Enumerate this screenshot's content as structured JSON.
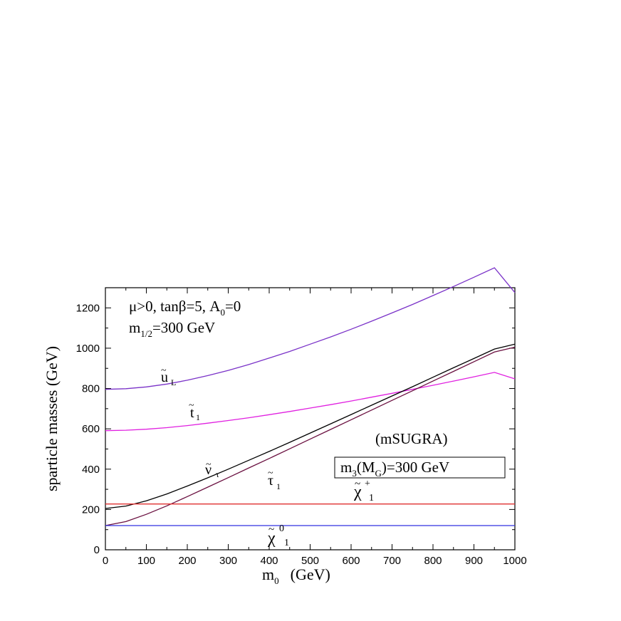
{
  "chart_data": {
    "type": "line",
    "xlabel_main": "m",
    "xlabel_sub": "0",
    "xlabel_unit": "(GeV)",
    "ylabel": "sparticle masses (GeV)",
    "xlim": [
      0,
      1000
    ],
    "ylim": [
      0,
      1300
    ],
    "xticks": [
      0,
      100,
      200,
      300,
      400,
      500,
      600,
      700,
      800,
      900,
      1000
    ],
    "yticks": [
      0,
      200,
      400,
      600,
      800,
      1000,
      1200
    ],
    "grid": false,
    "annotations": {
      "params_line1": {
        "a": "μ>0, tanβ=5, A",
        "sub": "0",
        "b": "=0"
      },
      "params_line2": {
        "a": "m",
        "sub": "1/2",
        "b": "=300 GeV"
      },
      "model": "(mSUGRA)",
      "boxed": {
        "a": "m",
        "sub1": "3",
        "b": "(M",
        "sub2": "G",
        "c": ")=300 GeV"
      }
    },
    "series": [
      {
        "label": {
          "glyph": "u",
          "tilde": "~",
          "sub": "L"
        },
        "color": "#7a32c8",
        "x": [
          0,
          50,
          100,
          150,
          200,
          250,
          300,
          350,
          400,
          450,
          500,
          550,
          600,
          650,
          700,
          750,
          800,
          850,
          900,
          950,
          1000
        ],
        "y": [
          796,
          799,
          808,
          822,
          841,
          864,
          890,
          919,
          951,
          984,
          1020,
          1056,
          1094,
          1134,
          1175,
          1217,
          1261,
          1306,
          1352,
          1399,
          1276
        ]
      },
      {
        "label": {
          "glyph": "t",
          "tilde": "~",
          "sub": "1"
        },
        "color": "#e020e0",
        "x": [
          0,
          50,
          100,
          150,
          200,
          250,
          300,
          350,
          400,
          450,
          500,
          550,
          600,
          650,
          700,
          750,
          800,
          850,
          900,
          950,
          1000
        ],
        "y": [
          591,
          593,
          598,
          606,
          616,
          628,
          641,
          655,
          670,
          686,
          703,
          720,
          738,
          757,
          776,
          796,
          816,
          837,
          858,
          880,
          848
        ]
      },
      {
        "label": {
          "glyph": "ν",
          "tilde": "~",
          "sub": "τ"
        },
        "color": "#000000",
        "x": [
          0,
          50,
          100,
          150,
          200,
          250,
          300,
          350,
          400,
          450,
          500,
          550,
          600,
          650,
          700,
          750,
          800,
          850,
          900,
          950,
          1000
        ],
        "y": [
          205,
          217,
          243,
          277,
          316,
          357,
          400,
          444,
          488,
          533,
          579,
          625,
          671,
          717,
          763,
          809,
          856,
          903,
          949,
          996,
          1020
        ]
      },
      {
        "label": {
          "glyph": "τ",
          "tilde": "~",
          "sub": "1"
        },
        "color": "#6a1040",
        "x": [
          0,
          50,
          100,
          150,
          200,
          250,
          300,
          350,
          400,
          450,
          500,
          550,
          600,
          650,
          700,
          750,
          800,
          850,
          900,
          950,
          1000
        ],
        "y": [
          120,
          140,
          176,
          218,
          264,
          311,
          358,
          406,
          453,
          501,
          549,
          597,
          645,
          693,
          741,
          789,
          837,
          885,
          933,
          981,
          1005
        ]
      },
      {
        "label": {
          "glyph": "χ",
          "tilde": "~",
          "sub": "1",
          "sup": "+"
        },
        "color": "#e03030",
        "x": [
          0,
          1000
        ],
        "y": [
          227,
          227
        ]
      },
      {
        "label": {
          "glyph": "χ",
          "tilde": "~",
          "sub": "1",
          "sup": "0"
        },
        "color": "#3030e0",
        "x": [
          0,
          1000
        ],
        "y": [
          120,
          120
        ]
      }
    ]
  }
}
